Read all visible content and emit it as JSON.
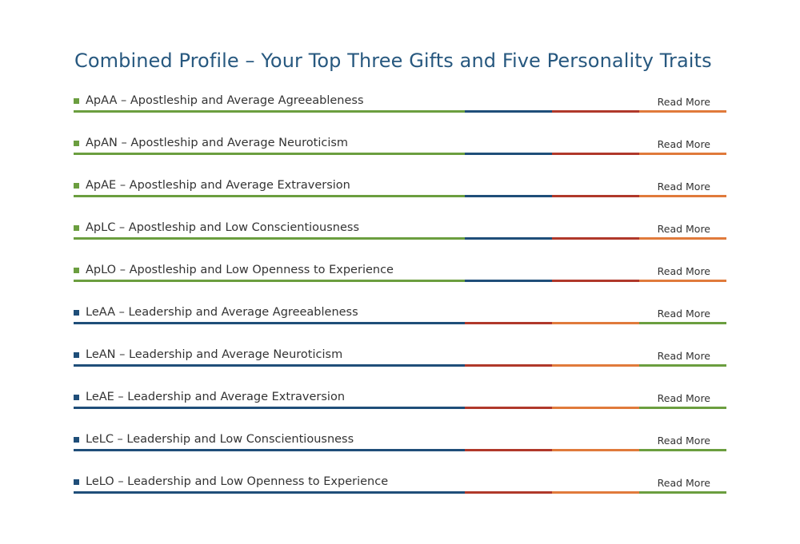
{
  "page": {
    "title": "Combined Profile – Your Top Three Gifts and Five Personality Traits"
  },
  "colors": {
    "title": "#27587f",
    "green": "#6b9e3f",
    "blue": "#1f4e79",
    "red": "#b0382a",
    "orange": "#e07a3b",
    "text": "#333333"
  },
  "rows": [
    {
      "label": "ApAA – Apostleship and Average Agreeableness",
      "read_more": "Read More",
      "bullet_color": "#6b9e3f",
      "bar_colors": [
        "#6b9e3f",
        "#1f4e79",
        "#b0382a",
        "#e07a3b"
      ]
    },
    {
      "label": "ApAN – Apostleship and Average Neuroticism",
      "read_more": "Read More",
      "bullet_color": "#6b9e3f",
      "bar_colors": [
        "#6b9e3f",
        "#1f4e79",
        "#b0382a",
        "#e07a3b"
      ]
    },
    {
      "label": "ApAE – Apostleship and Average Extraversion",
      "read_more": "Read More",
      "bullet_color": "#6b9e3f",
      "bar_colors": [
        "#6b9e3f",
        "#1f4e79",
        "#b0382a",
        "#e07a3b"
      ]
    },
    {
      "label": "ApLC – Apostleship and Low Conscientiousness",
      "read_more": "Read More",
      "bullet_color": "#6b9e3f",
      "bar_colors": [
        "#6b9e3f",
        "#1f4e79",
        "#b0382a",
        "#e07a3b"
      ]
    },
    {
      "label": "ApLO – Apostleship and Low Openness to Experience",
      "read_more": "Read More",
      "bullet_color": "#6b9e3f",
      "bar_colors": [
        "#6b9e3f",
        "#1f4e79",
        "#b0382a",
        "#e07a3b"
      ]
    },
    {
      "label": "LeAA – Leadership and Average Agreeableness",
      "read_more": "Read More",
      "bullet_color": "#1f4e79",
      "bar_colors": [
        "#1f4e79",
        "#b0382a",
        "#e07a3b",
        "#6b9e3f"
      ]
    },
    {
      "label": "LeAN – Leadership and Average Neuroticism",
      "read_more": "Read More",
      "bullet_color": "#1f4e79",
      "bar_colors": [
        "#1f4e79",
        "#b0382a",
        "#e07a3b",
        "#6b9e3f"
      ]
    },
    {
      "label": "LeAE – Leadership and Average Extraversion",
      "read_more": "Read More",
      "bullet_color": "#1f4e79",
      "bar_colors": [
        "#1f4e79",
        "#b0382a",
        "#e07a3b",
        "#6b9e3f"
      ]
    },
    {
      "label": "LeLC – Leadership and Low Conscientiousness",
      "read_more": "Read More",
      "bullet_color": "#1f4e79",
      "bar_colors": [
        "#1f4e79",
        "#b0382a",
        "#e07a3b",
        "#6b9e3f"
      ]
    },
    {
      "label": "LeLO – Leadership and Low Openness to Experience",
      "read_more": "Read More",
      "bullet_color": "#1f4e79",
      "bar_colors": [
        "#1f4e79",
        "#b0382a",
        "#e07a3b",
        "#6b9e3f"
      ]
    }
  ]
}
